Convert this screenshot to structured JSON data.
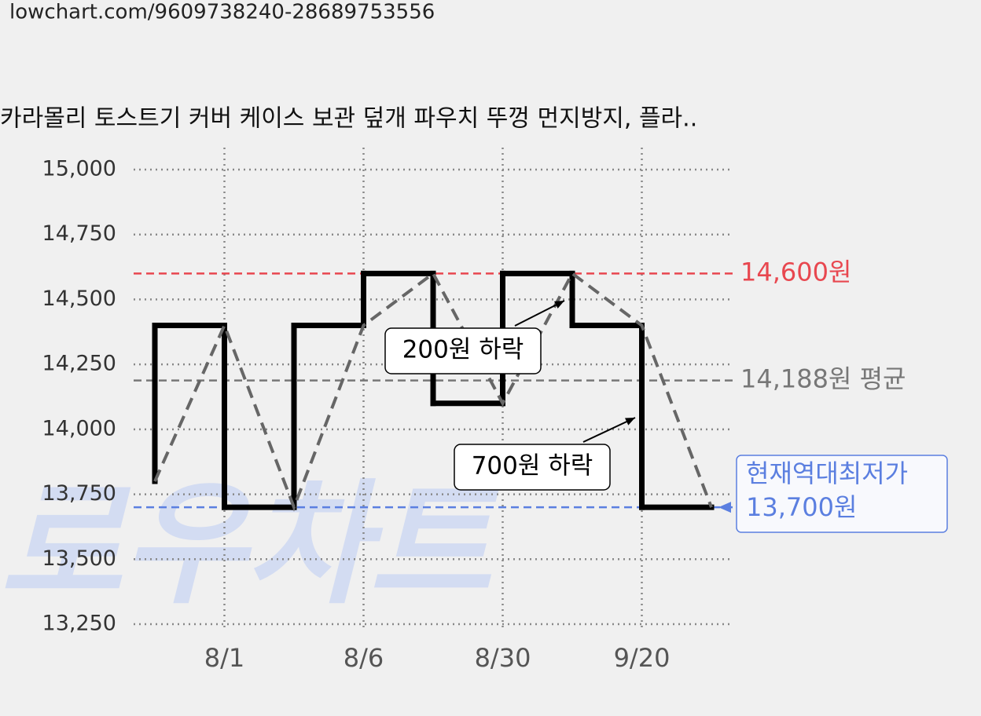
{
  "url": "lowchart.com/9609738240-28689753556",
  "chart_data": {
    "type": "line",
    "title": "카라몰리 토스트기 커버 케이스 보관 덮개 파우치 뚜껑 먼지방지, 플라..",
    "watermark": "로우차트",
    "categories": [
      null,
      "8/1",
      null,
      "8/6",
      null,
      "8/30",
      null,
      "9/20",
      null
    ],
    "values": [
      13800,
      14400,
      13700,
      14400,
      14600,
      14100,
      14600,
      14400,
      13700
    ],
    "color": "#000000",
    "dash_color": "#666666",
    "ylim": [
      13250,
      15000
    ],
    "yticks": [
      {
        "value": 13250,
        "label": "13,250"
      },
      {
        "value": 13500,
        "label": "13,500"
      },
      {
        "value": 13750,
        "label": "13,750"
      },
      {
        "value": 14000,
        "label": "14,000"
      },
      {
        "value": 14250,
        "label": "14,250"
      },
      {
        "value": 14500,
        "label": "14,500"
      },
      {
        "value": 14750,
        "label": "14,750"
      },
      {
        "value": 15000,
        "label": "15,000"
      }
    ],
    "grid": true,
    "ref_lines": [
      {
        "value": 14600,
        "label": "14,600원",
        "color": "#e8474f"
      },
      {
        "value": 14188,
        "label": "14,188원 평균",
        "color": "#777777"
      },
      {
        "value": 13700,
        "title": "현재역대최저가",
        "label": "13,700원",
        "color": "#5b7fe0"
      }
    ],
    "annotations": [
      {
        "text": "200원 하락"
      },
      {
        "text": "700원 하락"
      }
    ]
  }
}
